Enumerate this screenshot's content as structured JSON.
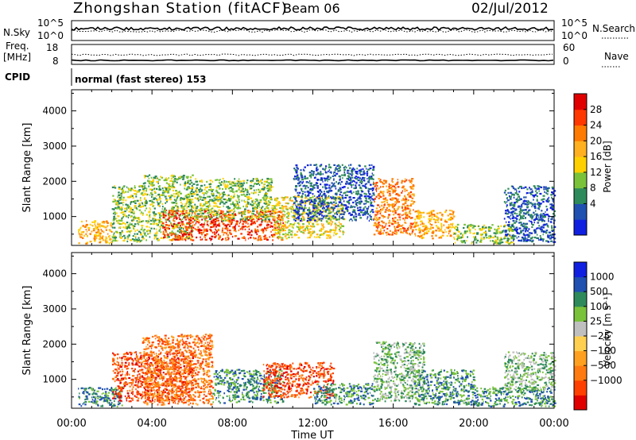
{
  "header": {
    "station": "Zhongshan Station (fitACF)",
    "beam": "Beam 06",
    "date": "02/Jul/2012"
  },
  "status_panels": {
    "nsky_label": "N.Sky",
    "nsearch_label": "N.Search",
    "nsky_ticks": [
      "10^5",
      "10^0"
    ],
    "nsearch_ticks": [
      "10^5",
      "10^0"
    ],
    "freq_label": "Freq.",
    "freq_unit": "[MHz]",
    "freq_ticks": [
      "18",
      "8"
    ],
    "nave_label": "Nave",
    "nave_ticks": [
      "60",
      "0"
    ],
    "cpid_label": "CPID",
    "cpid_text": "normal (fast stereo) 153"
  },
  "chart_data": [
    {
      "type": "heatmap",
      "title": "",
      "xlabel": "Time UT",
      "ylabel": "Slant Range [km]",
      "x_ticks": [
        "00:00",
        "04:00",
        "08:00",
        "12:00",
        "16:00",
        "20:00",
        "00:00"
      ],
      "y_ticks": [
        "1000",
        "2000",
        "3000",
        "4000"
      ],
      "xlim_hours": [
        0,
        24
      ],
      "ylim_km": [
        180,
        4600
      ],
      "colorbar": {
        "label": "Power [dB]",
        "ticks": [
          "28",
          "24",
          "20",
          "16",
          "12",
          "8",
          "4"
        ],
        "colors": [
          "#1020e0",
          "#2050b0",
          "#2e8a5a",
          "#79c23a",
          "#ffd000",
          "#ffb020",
          "#ff7a00",
          "#ff3800",
          "#e00000"
        ]
      },
      "scatter_regions": [
        {
          "t0": 0.3,
          "t1": 2.0,
          "r0": 250,
          "r1": 900,
          "level": 5
        },
        {
          "t0": 2.0,
          "t1": 3.5,
          "r0": 300,
          "r1": 1900,
          "level": 3
        },
        {
          "t0": 3.5,
          "t1": 6.0,
          "r0": 350,
          "r1": 2200,
          "level": 3
        },
        {
          "t0": 4.5,
          "t1": 10.5,
          "r0": 350,
          "r1": 1200,
          "level": 7
        },
        {
          "t0": 6.0,
          "t1": 10.0,
          "r0": 900,
          "r1": 2100,
          "level": 3
        },
        {
          "t0": 10.0,
          "t1": 13.5,
          "r0": 400,
          "r1": 1600,
          "level": 4
        },
        {
          "t0": 11.0,
          "t1": 15.0,
          "r0": 900,
          "r1": 2500,
          "level": 1
        },
        {
          "t0": 15.0,
          "t1": 17.0,
          "r0": 500,
          "r1": 2100,
          "level": 6
        },
        {
          "t0": 17.0,
          "t1": 19.0,
          "r0": 400,
          "r1": 1200,
          "level": 5
        },
        {
          "t0": 19.0,
          "t1": 22.0,
          "r0": 250,
          "r1": 800,
          "level": 3
        },
        {
          "t0": 21.5,
          "t1": 24.0,
          "r0": 300,
          "r1": 1900,
          "level": 1
        }
      ]
    },
    {
      "type": "heatmap",
      "title": "",
      "xlabel": "Time UT",
      "ylabel": "Slant Range [km]",
      "x_ticks": [
        "00:00",
        "04:00",
        "08:00",
        "12:00",
        "16:00",
        "20:00",
        "00:00"
      ],
      "y_ticks": [
        "1000",
        "2000",
        "3000",
        "4000"
      ],
      "xlim_hours": [
        0,
        24
      ],
      "ylim_km": [
        180,
        4600
      ],
      "colorbar": {
        "label": "Velocity [m s⁻¹]",
        "ticks": [
          "1000",
          "500",
          "100",
          "25",
          "−25",
          "−100",
          "−500",
          "−1000"
        ],
        "colors": [
          "#e00000",
          "#ff4000",
          "#ff7a10",
          "#ffa020",
          "#ffd050",
          "#bfbfbf",
          "#79c23a",
          "#2e8a5a",
          "#2050b0",
          "#1020e0"
        ]
      },
      "scatter_regions": [
        {
          "t0": 0.3,
          "t1": 2.5,
          "r0": 250,
          "r1": 800,
          "level": 7
        },
        {
          "t0": 2.0,
          "t1": 6.0,
          "r0": 400,
          "r1": 1800,
          "level": 1
        },
        {
          "t0": 3.5,
          "t1": 7.0,
          "r0": 300,
          "r1": 2300,
          "level": 2
        },
        {
          "t0": 7.0,
          "t1": 10.5,
          "r0": 350,
          "r1": 1300,
          "level": 7
        },
        {
          "t0": 9.5,
          "t1": 13.0,
          "r0": 500,
          "r1": 1500,
          "level": 1
        },
        {
          "t0": 12.0,
          "t1": 15.0,
          "r0": 300,
          "r1": 900,
          "level": 7
        },
        {
          "t0": 15.0,
          "t1": 17.5,
          "r0": 400,
          "r1": 2100,
          "level": 6
        },
        {
          "t0": 17.0,
          "t1": 20.0,
          "r0": 300,
          "r1": 1300,
          "level": 7
        },
        {
          "t0": 20.0,
          "t1": 24.0,
          "r0": 250,
          "r1": 800,
          "level": 7
        },
        {
          "t0": 21.5,
          "t1": 24.0,
          "r0": 700,
          "r1": 1800,
          "level": 6
        }
      ]
    }
  ]
}
